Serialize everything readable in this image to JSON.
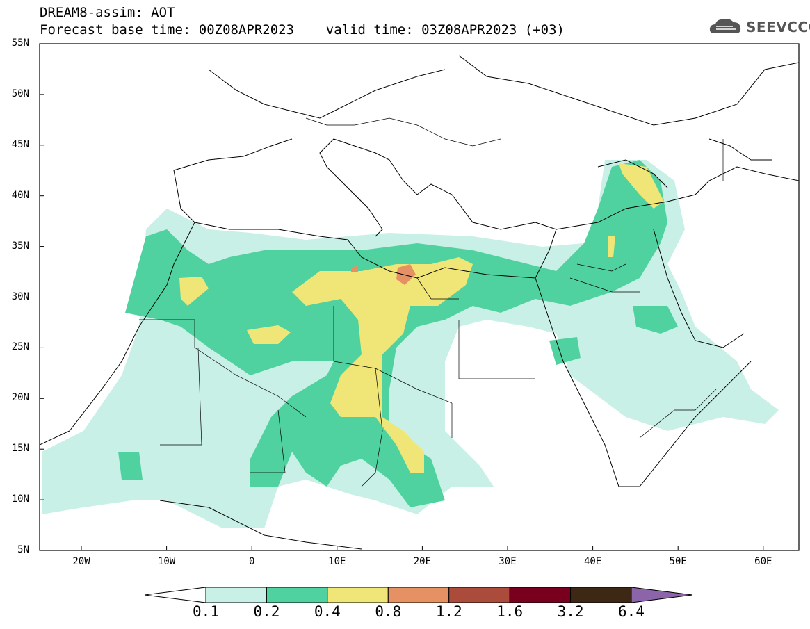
{
  "title": {
    "line1": "DREAM8-assim: AOT",
    "line2": "Forecast base time: 00Z08APR2023    valid time: 03Z08APR2023 (+03)"
  },
  "logo": {
    "text": "SEEVCCC",
    "icon": "cloud-icon"
  },
  "map": {
    "lat_labels": [
      "55N",
      "50N",
      "45N",
      "40N",
      "35N",
      "30N",
      "25N",
      "20N",
      "15N",
      "10N",
      "5N"
    ],
    "lon_labels": [
      "20W",
      "10W",
      "0",
      "10E",
      "20E",
      "30E",
      "40E",
      "50E",
      "60E"
    ]
  },
  "colorbar": {
    "labels": [
      "0.1",
      "0.2",
      "0.4",
      "0.8",
      "1.2",
      "1.6",
      "3.2",
      "6.4"
    ],
    "colors": [
      "#c8f0e6",
      "#50d2a0",
      "#f0e678",
      "#e69164",
      "#aa4b3c",
      "#78001e",
      "#3c2814",
      "#8c64aa"
    ]
  }
}
